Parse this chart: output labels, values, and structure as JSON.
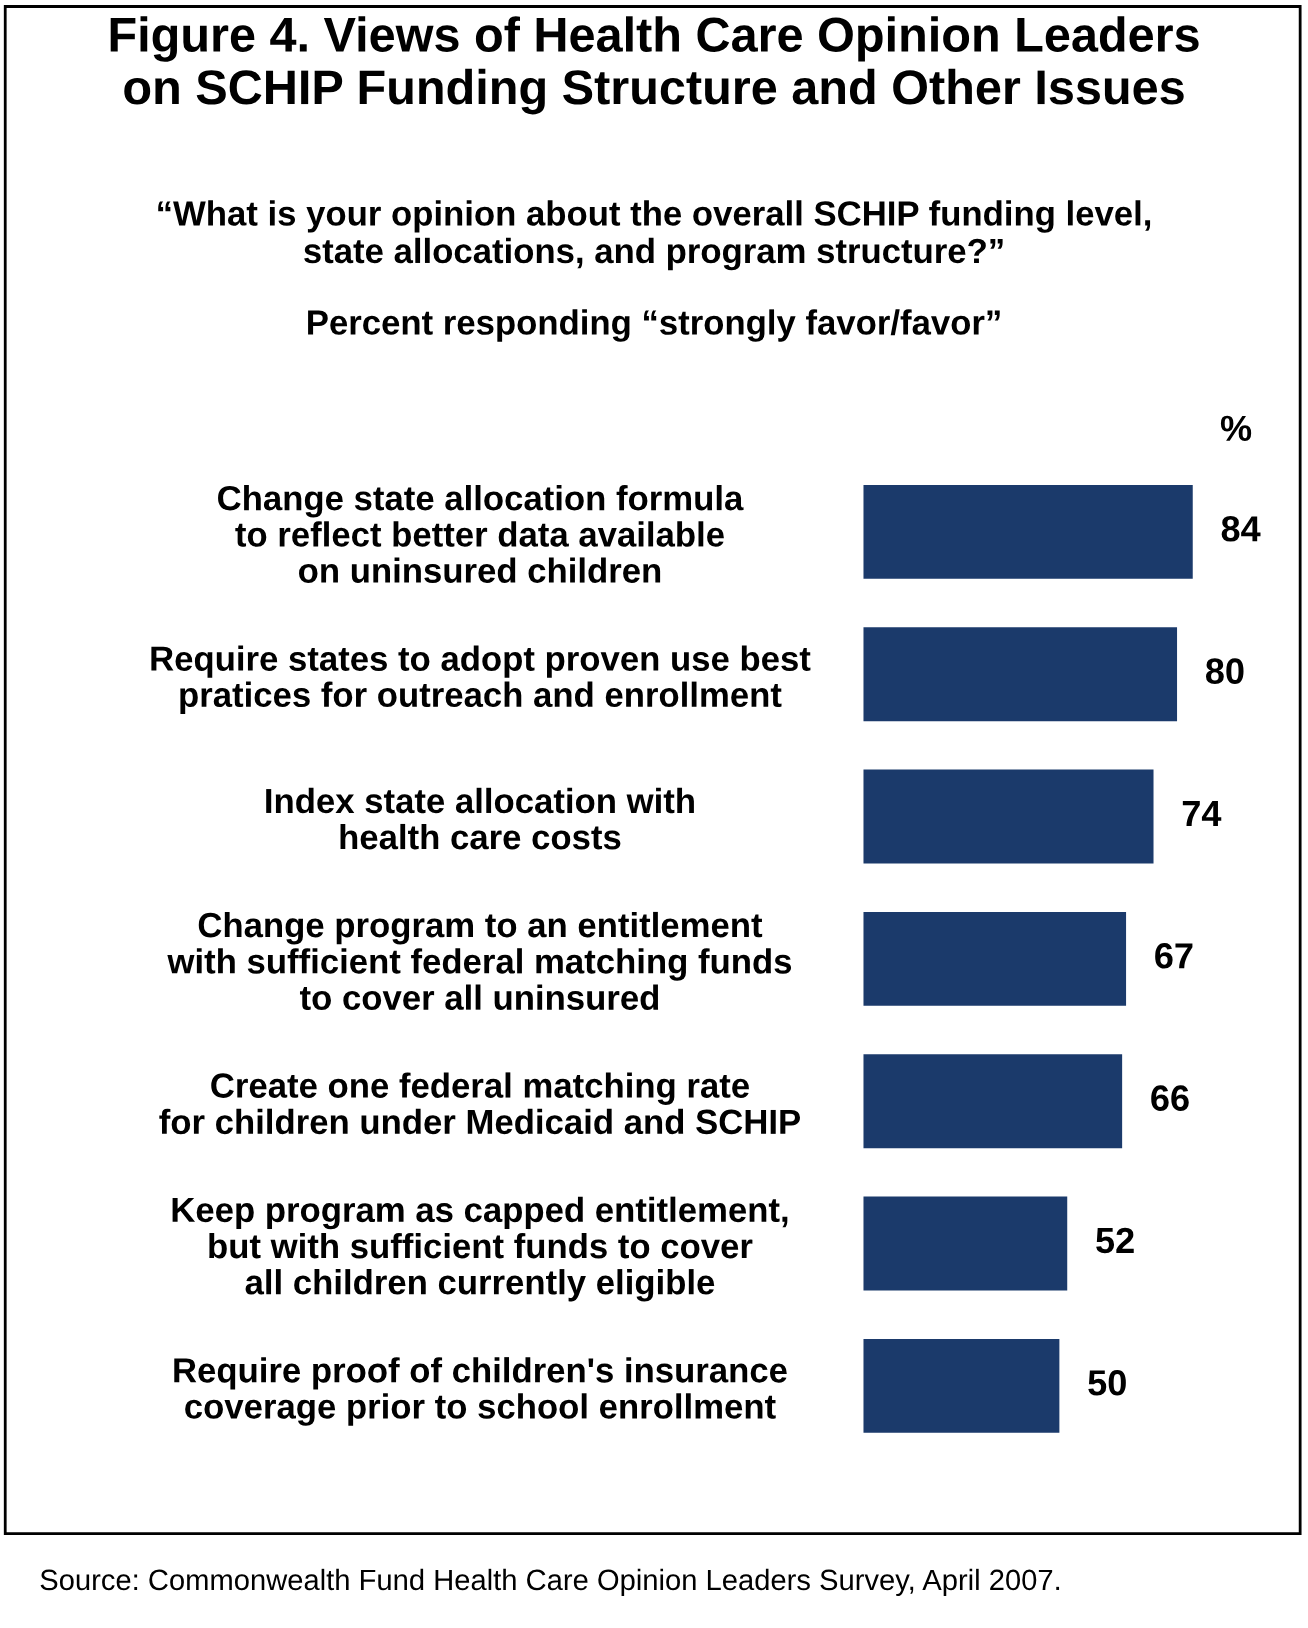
{
  "chart_data": {
    "type": "bar",
    "orientation": "horizontal",
    "title": "Figure 4. Views of Health Care Opinion Leaders\non SCHIP Funding Structure and Other Issues",
    "subtitle": "“What is your opinion about the overall SCHIP funding level,\nstate allocations, and program structure?”",
    "categories": [
      "Change state allocation formula\nto reflect better data available\non uninsured children",
      "Require states to adopt proven use best\npratices for outreach and enrollment",
      "Index state allocation with\nhealth care costs",
      "Change program to an entitlement\nwith sufficient federal matching funds\nto cover all uninsured",
      "Create one federal matching rate\nfor children under Medicaid and SCHIP",
      "Keep program as capped entitlement,\nbut with sufficient funds to cover\nall children currently eligible",
      "Require proof of children's insurance\ncoverage prior to school enrollment"
    ],
    "values": [
      84,
      80,
      74,
      67,
      66,
      52,
      50
    ],
    "color": "#1b3a6b",
    "data_labels": true,
    "grid": false,
    "legend": false,
    "annotations": [
      "Percent responding “strongly favor/favor”",
      "%",
      "Source: Commonwealth Fund Health Care Opinion Leaders Survey, April 2007."
    ]
  }
}
